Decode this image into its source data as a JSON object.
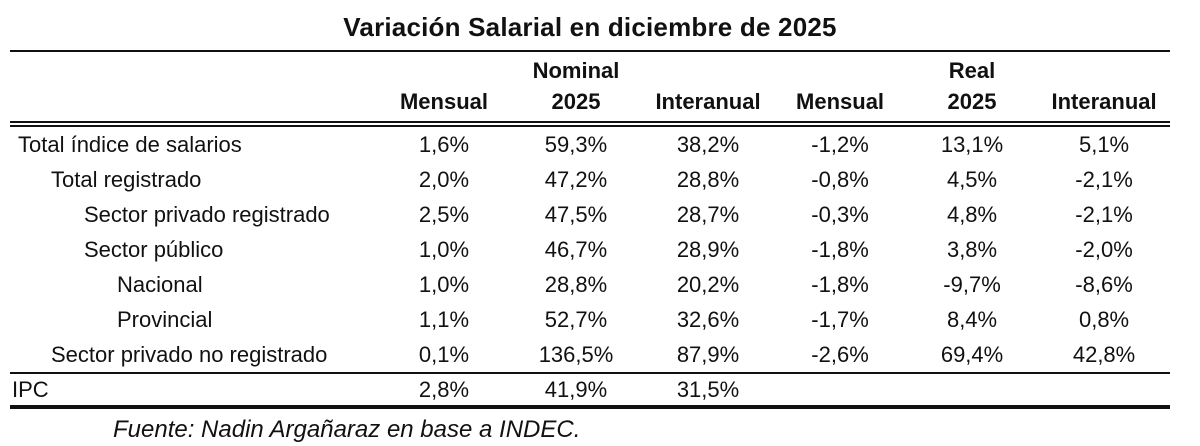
{
  "page": {
    "background": "#ffffff",
    "text_color": "#111111",
    "rule_color": "#111111"
  },
  "chart_data": {
    "type": "table",
    "title": "Variación Salarial en diciembre de 2025",
    "group_headers": [
      {
        "label": "Nominal",
        "span": 3
      },
      {
        "label": "Real",
        "span": 3
      }
    ],
    "columns": [
      "Mensual",
      "2025",
      "Interanual",
      "Mensual",
      "2025",
      "Interanual"
    ],
    "rows": [
      {
        "label": "Total índice de salarios",
        "indent": 0,
        "values": [
          "1,6%",
          "59,3%",
          "38,2%",
          "-1,2%",
          "13,1%",
          "5,1%"
        ]
      },
      {
        "label": "Total registrado",
        "indent": 1,
        "values": [
          "2,0%",
          "47,2%",
          "28,8%",
          "-0,8%",
          "4,5%",
          "-2,1%"
        ]
      },
      {
        "label": "Sector privado registrado",
        "indent": 2,
        "values": [
          "2,5%",
          "47,5%",
          "28,7%",
          "-0,3%",
          "4,8%",
          "-2,1%"
        ]
      },
      {
        "label": "Sector público",
        "indent": 2,
        "values": [
          "1,0%",
          "46,7%",
          "28,9%",
          "-1,8%",
          "3,8%",
          "-2,0%"
        ]
      },
      {
        "label": "Nacional",
        "indent": 3,
        "values": [
          "1,0%",
          "28,8%",
          "20,2%",
          "-1,8%",
          "-9,7%",
          "-8,6%"
        ]
      },
      {
        "label": "Provincial",
        "indent": 3,
        "values": [
          "1,1%",
          "52,7%",
          "32,6%",
          "-1,7%",
          "8,4%",
          "0,8%"
        ]
      },
      {
        "label": "Sector privado no registrado",
        "indent": 1,
        "values": [
          "0,1%",
          "136,5%",
          "87,9%",
          "-2,6%",
          "69,4%",
          "42,8%"
        ]
      },
      {
        "label": "IPC",
        "indent": 0,
        "rule_above": true,
        "flush_left": true,
        "values": [
          "2,8%",
          "41,9%",
          "31,5%",
          "",
          "",
          ""
        ]
      }
    ],
    "source_note": "Fuente: Nadin Argañaraz en base a INDEC."
  }
}
